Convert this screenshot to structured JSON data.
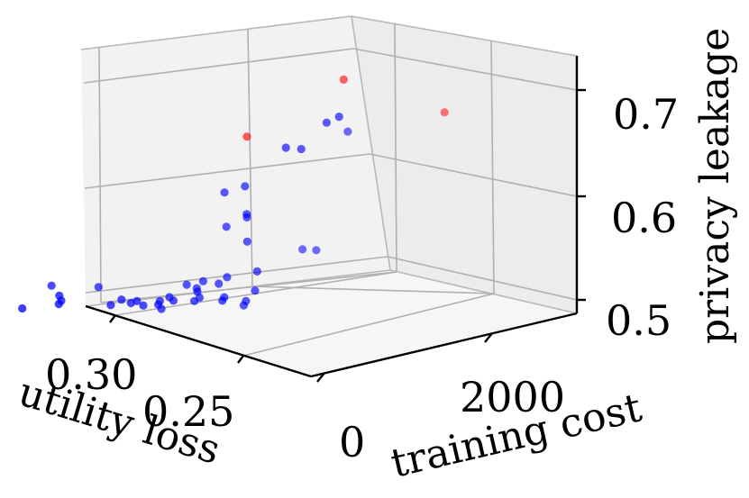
{
  "chart_data": {
    "type": "scatter",
    "projection": "3d",
    "title": "",
    "xlabel": "utility loss",
    "ylabel": "training cost",
    "zlabel": "privacy leakage",
    "x_ticks": [
      "0.30",
      "0.25"
    ],
    "y_ticks": [
      "0",
      "2000"
    ],
    "z_ticks": [
      "0.7",
      "0.6",
      "0.5"
    ],
    "zlim": [
      0.48,
      0.75
    ],
    "colors": {
      "pareto": "#ff0000",
      "other": "#0000ff"
    },
    "series": [
      {
        "name": "blue points",
        "color": "#0000ff",
        "points": [
          [
            0.296,
            1505,
            0.493
          ],
          [
            0.284,
            1370,
            0.498
          ],
          [
            0.283,
            1378,
            0.501
          ],
          [
            0.283,
            1435,
            0.505
          ],
          [
            0.262,
            1255,
            0.502
          ],
          [
            0.266,
            1255,
            0.497
          ],
          [
            0.259,
            1212,
            0.499
          ],
          [
            0.257,
            1193,
            0.501
          ],
          [
            0.255,
            1164,
            0.497
          ],
          [
            0.249,
            1147,
            0.501
          ],
          [
            0.25,
            1117,
            0.498
          ],
          [
            0.249,
            1102,
            0.494
          ],
          [
            0.246,
            1102,
            0.505
          ],
          [
            0.245,
            1062,
            0.502
          ],
          [
            0.238,
            997,
            0.502
          ],
          [
            0.236,
            1002,
            0.505
          ],
          [
            0.236,
            1063,
            0.51
          ],
          [
            0.236,
            1083,
            0.513
          ],
          [
            0.229,
            880,
            0.503
          ],
          [
            0.228,
            902,
            0.506
          ],
          [
            0.222,
            802,
            0.499
          ],
          [
            0.221,
            813,
            0.503
          ],
          [
            0.283,
            1660,
            0.512
          ],
          [
            0.267,
            1535,
            0.511
          ],
          [
            0.239,
            1142,
            0.516
          ],
          [
            0.234,
            1052,
            0.52
          ],
          [
            0.229,
            987,
            0.518
          ],
          [
            0.226,
            977,
            0.524
          ],
          [
            0.218,
            782,
            0.513
          ],
          [
            0.217,
            800,
            0.531
          ],
          [
            0.22,
            854,
            0.559
          ],
          [
            0.226,
            995,
            0.572
          ],
          [
            0.22,
            867,
            0.582
          ],
          [
            0.22,
            872,
            0.585
          ],
          [
            0.226,
            1050,
            0.604
          ],
          [
            0.22,
            920,
            0.611
          ],
          [
            0.208,
            660,
            0.65
          ],
          [
            0.203,
            602,
            0.649
          ],
          [
            0.195,
            483,
            0.675
          ],
          [
            0.191,
            432,
            0.681
          ],
          [
            0.197,
            1034,
            0.548
          ],
          [
            0.193,
            943,
            0.548
          ],
          [
            0.184,
            722,
            0.663
          ]
        ]
      },
      {
        "name": "red points",
        "color": "#ff0000",
        "points": [
          [
            0.219,
            942,
            0.658
          ],
          [
            0.187,
            610,
            0.714
          ],
          [
            0.151,
            470,
            0.682
          ]
        ]
      }
    ]
  }
}
